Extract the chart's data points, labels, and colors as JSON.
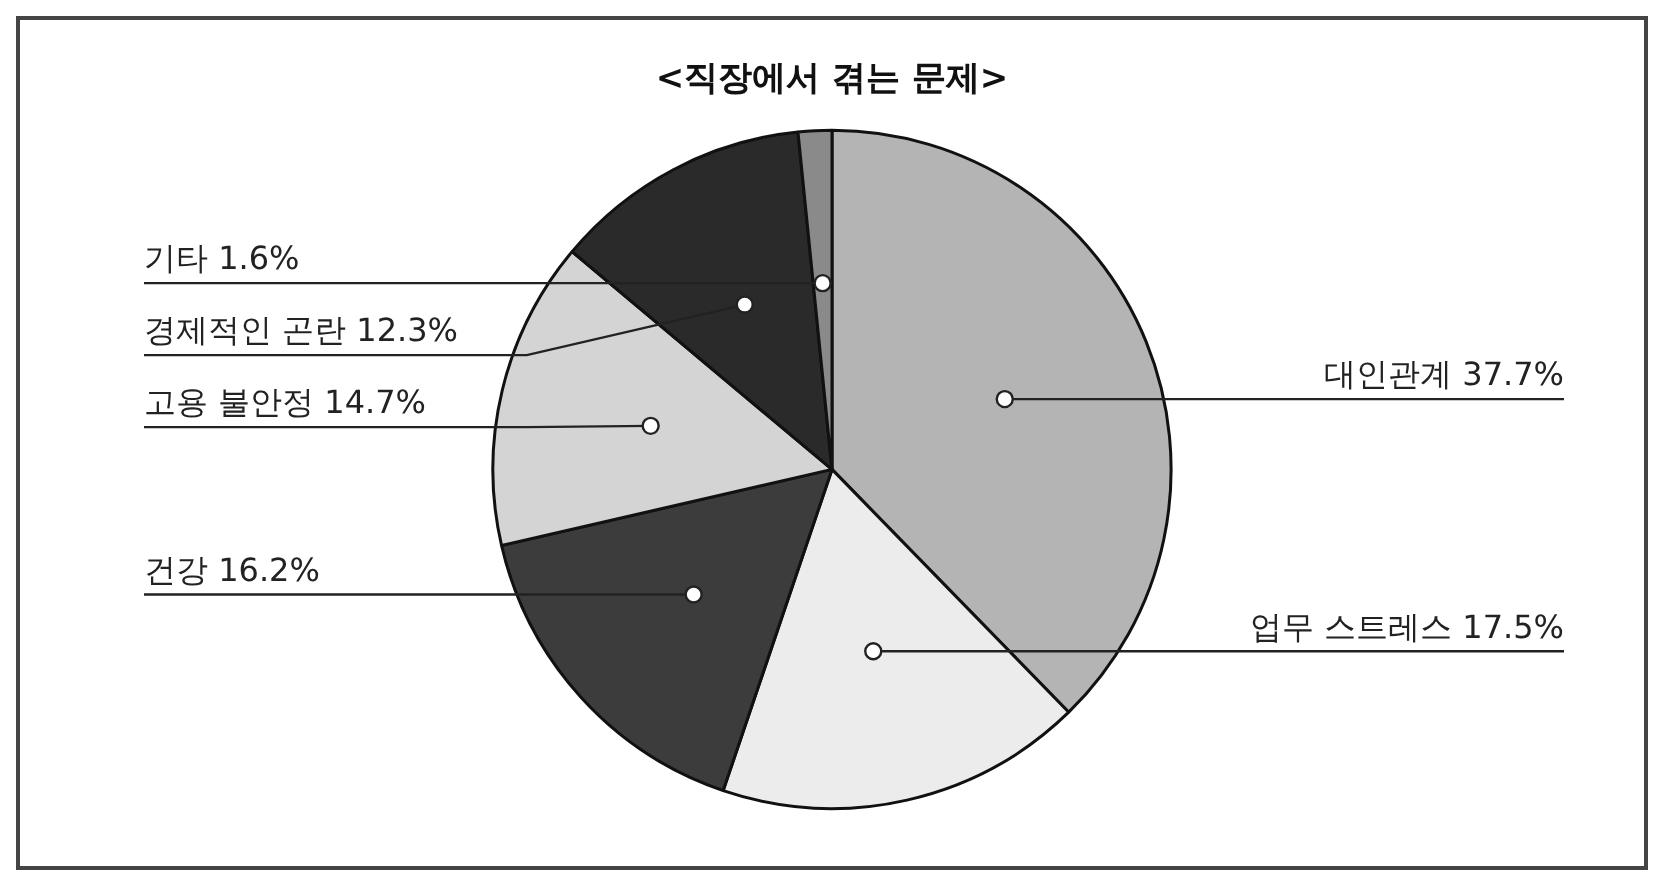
{
  "chart_data": {
    "type": "pie",
    "title": "<직장에서 겪는 문제>",
    "categories": [
      "대인관계",
      "업무 스트레스",
      "건강",
      "고용 불안정",
      "경제적인 곤란",
      "기타"
    ],
    "values": [
      37.7,
      17.5,
      16.2,
      14.7,
      12.3,
      1.6
    ],
    "value_labels": [
      "37.7%",
      "17.5%",
      "16.2%",
      "14.7%",
      "12.3%",
      "1.6%"
    ],
    "colors": [
      "#b4b4b4",
      "#ececec",
      "#3c3c3c",
      "#d4d4d4",
      "#2a2a2a",
      "#8a8a8a"
    ],
    "legend": false
  }
}
